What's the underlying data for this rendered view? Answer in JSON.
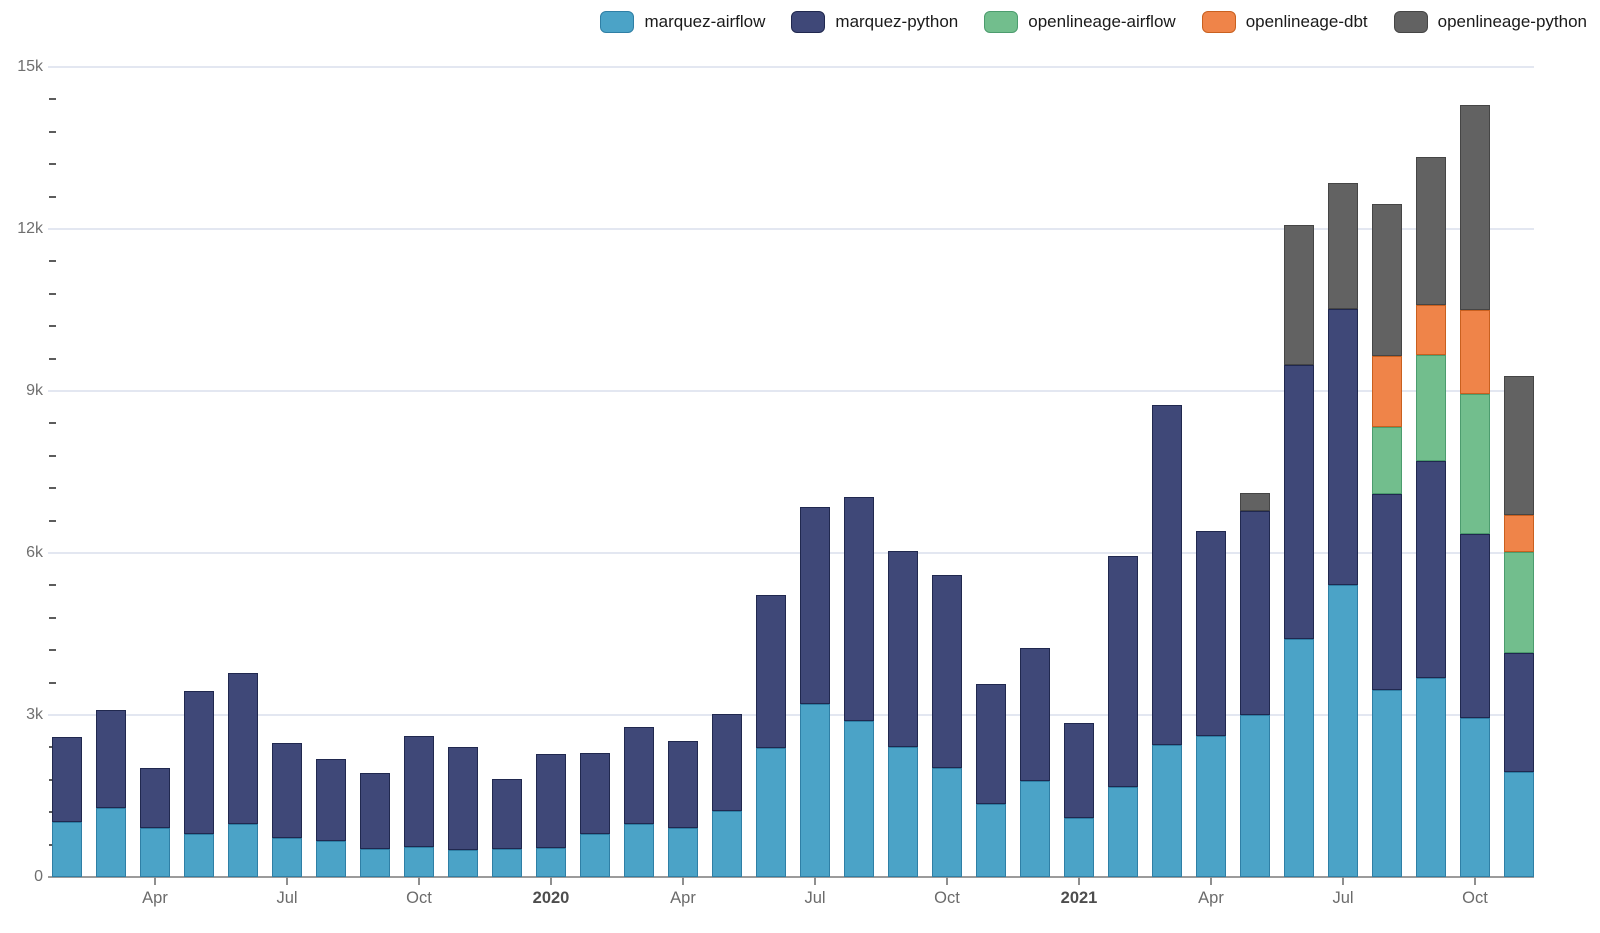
{
  "chart_data": {
    "type": "bar",
    "stacked": true,
    "title": "",
    "xlabel": "",
    "ylabel": "",
    "ylim": [
      0,
      15000
    ],
    "grid": "horizontal",
    "legend_position": "top-right",
    "x": [
      "Feb 2019",
      "Mar 2019",
      "Apr 2019",
      "May 2019",
      "Jun 2019",
      "Jul 2019",
      "Aug 2019",
      "Sep 2019",
      "Oct 2019",
      "Nov 2019",
      "Dec 2019",
      "Jan 2020",
      "Feb 2020",
      "Mar 2020",
      "Apr 2020",
      "May 2020",
      "Jun 2020",
      "Jul 2020",
      "Aug 2020",
      "Sep 2020",
      "Oct 2020",
      "Nov 2020",
      "Dec 2020",
      "Jan 2021",
      "Feb 2021",
      "Mar 2021",
      "Apr 2021",
      "May 2021",
      "Jun 2021",
      "Jul 2021",
      "Aug 2021",
      "Sep 2021",
      "Oct 2021",
      "Nov 2021"
    ],
    "series": [
      {
        "name": "marquez-airflow",
        "color": "#4ba3c7",
        "stroke": "#2f7fa5",
        "values": [
          1020,
          1280,
          900,
          800,
          990,
          730,
          660,
          520,
          560,
          500,
          510,
          530,
          790,
          980,
          900,
          1230,
          2380,
          3200,
          2880,
          2410,
          2010,
          1350,
          1780,
          1100,
          1670,
          2440,
          2620,
          3000,
          4400,
          5410,
          3460,
          3690,
          2950,
          1950
        ]
      },
      {
        "name": "marquez-python",
        "color": "#3f4878",
        "stroke": "#20284f",
        "values": [
          1580,
          1810,
          1120,
          2650,
          2790,
          1760,
          1530,
          1410,
          2050,
          1910,
          1310,
          1750,
          1510,
          1800,
          1620,
          1780,
          2840,
          3650,
          4160,
          3630,
          3590,
          2220,
          2470,
          1760,
          4270,
          6310,
          3790,
          3780,
          5090,
          5110,
          3630,
          4010,
          3400,
          2190
        ]
      },
      {
        "name": "openlineage-airflow",
        "color": "#72be8d",
        "stroke": "#4c9c6e",
        "values": [
          0,
          0,
          0,
          0,
          0,
          0,
          0,
          0,
          0,
          0,
          0,
          0,
          0,
          0,
          0,
          0,
          0,
          0,
          0,
          0,
          0,
          0,
          0,
          0,
          0,
          0,
          0,
          0,
          0,
          0,
          1250,
          1970,
          2600,
          1880
        ]
      },
      {
        "name": "openlineage-dbt",
        "color": "#ef8449",
        "stroke": "#c9601f",
        "values": [
          0,
          0,
          0,
          0,
          0,
          0,
          0,
          0,
          0,
          0,
          0,
          0,
          0,
          0,
          0,
          0,
          0,
          0,
          0,
          0,
          0,
          0,
          0,
          0,
          0,
          0,
          0,
          0,
          0,
          0,
          1310,
          920,
          1550,
          680
        ]
      },
      {
        "name": "openlineage-python",
        "color": "#626262",
        "stroke": "#454545",
        "values": [
          0,
          0,
          0,
          0,
          0,
          0,
          0,
          0,
          0,
          0,
          0,
          0,
          0,
          0,
          0,
          0,
          0,
          0,
          0,
          0,
          0,
          0,
          0,
          0,
          0,
          0,
          0,
          340,
          2580,
          2330,
          2820,
          2750,
          3800,
          2580
        ]
      }
    ],
    "y_ticks": [
      {
        "value": 0,
        "label": "0"
      },
      {
        "value": 3000,
        "label": "3k"
      },
      {
        "value": 6000,
        "label": "6k"
      },
      {
        "value": 9000,
        "label": "9k"
      },
      {
        "value": 12000,
        "label": "12k"
      },
      {
        "value": 15000,
        "label": "15k"
      }
    ],
    "y_minor_step": 600,
    "x_ticks": [
      {
        "index": 2,
        "label": "Apr",
        "bold": false
      },
      {
        "index": 5,
        "label": "Jul",
        "bold": false
      },
      {
        "index": 8,
        "label": "Oct",
        "bold": false
      },
      {
        "index": 11,
        "label": "2020",
        "bold": true
      },
      {
        "index": 14,
        "label": "Apr",
        "bold": false
      },
      {
        "index": 17,
        "label": "Jul",
        "bold": false
      },
      {
        "index": 20,
        "label": "Oct",
        "bold": false
      },
      {
        "index": 23,
        "label": "2021",
        "bold": true
      },
      {
        "index": 26,
        "label": "Apr",
        "bold": false
      },
      {
        "index": 29,
        "label": "Jul",
        "bold": false
      },
      {
        "index": 32,
        "label": "Oct",
        "bold": false
      }
    ],
    "colors": {
      "background": "#ffffff",
      "gridline": "#e3e7f1",
      "baseline": "#9b9b9b",
      "axis_label": "#6f6f6f",
      "year_label": "#4d4d4d",
      "legend_text": "#1a1a1a"
    }
  }
}
